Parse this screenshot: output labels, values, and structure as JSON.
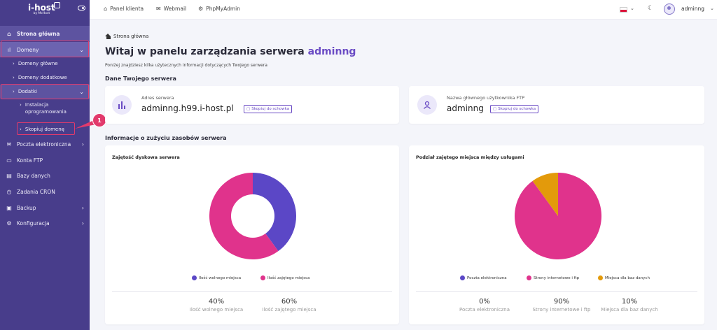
{
  "brand": {
    "name": "i-host",
    "tagline": "by McHost"
  },
  "sidebar": {
    "items": [
      {
        "label": "Strona główna"
      },
      {
        "label": "Domeny"
      },
      {
        "label": "Domeny główne"
      },
      {
        "label": "Domeny dodatkowe"
      },
      {
        "label": "Dodatki"
      },
      {
        "label": "Instalacja oprogramowania"
      },
      {
        "label": "Skopiuj domenę"
      },
      {
        "label": "Poczta elektroniczna"
      },
      {
        "label": "Konta FTP"
      },
      {
        "label": "Bazy danych"
      },
      {
        "label": "Zadania CRON"
      },
      {
        "label": "Backup"
      },
      {
        "label": "Konfiguracja"
      }
    ]
  },
  "topbar": {
    "panel_link": "Panel klienta",
    "webmail_link": "Webmail",
    "phpmyadmin_link": "PhpMyAdmin",
    "user": "adminng"
  },
  "callout": {
    "number": "1"
  },
  "breadcrumb": "Strona główna",
  "header": {
    "title_prefix": "Witaj w panelu zarządzania serwera",
    "title_user": "adminng",
    "subtitle": "Poniżej znajdziesz kilka użytecznych informacji dotyczących Twojego serwera"
  },
  "server_section": {
    "heading": "Dane Twojego serwera",
    "address_label": "Adres serwera",
    "address_value": "adminng.h99.i-host.pl",
    "ftp_label": "Nazwa głównego użytkownika FTP",
    "ftp_value": "adminng",
    "copy_label": "Skopiuj do schowka"
  },
  "usage_section": {
    "heading": "Informacje o zużyciu zasobów serwera"
  },
  "chart_data": [
    {
      "type": "pie",
      "title": "Zajętość dyskowa serwera",
      "categories": [
        "Ilość wolnego miejsca",
        "Ilość zajętego miejsca"
      ],
      "values": [
        40,
        60
      ],
      "colors": [
        "#5b47c6",
        "#e0338c"
      ],
      "stats": [
        {
          "value": "40%",
          "label": "Ilość wolnego miejsca"
        },
        {
          "value": "60%",
          "label": "Ilość zajętego miejsca"
        }
      ]
    },
    {
      "type": "pie",
      "title": "Podział zajętego miejsca między usługami",
      "categories": [
        "Poczta elektroniczna",
        "Strony internetowe i ftp",
        "Miejsca dla baz danych"
      ],
      "values": [
        0,
        90,
        10
      ],
      "colors": [
        "#5b47c6",
        "#e0338c",
        "#e39a0b"
      ],
      "stats": [
        {
          "value": "0%",
          "label": "Poczta elektroniczna"
        },
        {
          "value": "90%",
          "label": "Strony internetowe i ftp"
        },
        {
          "value": "10%",
          "label": "Miejsca dla baz danych"
        }
      ]
    }
  ]
}
